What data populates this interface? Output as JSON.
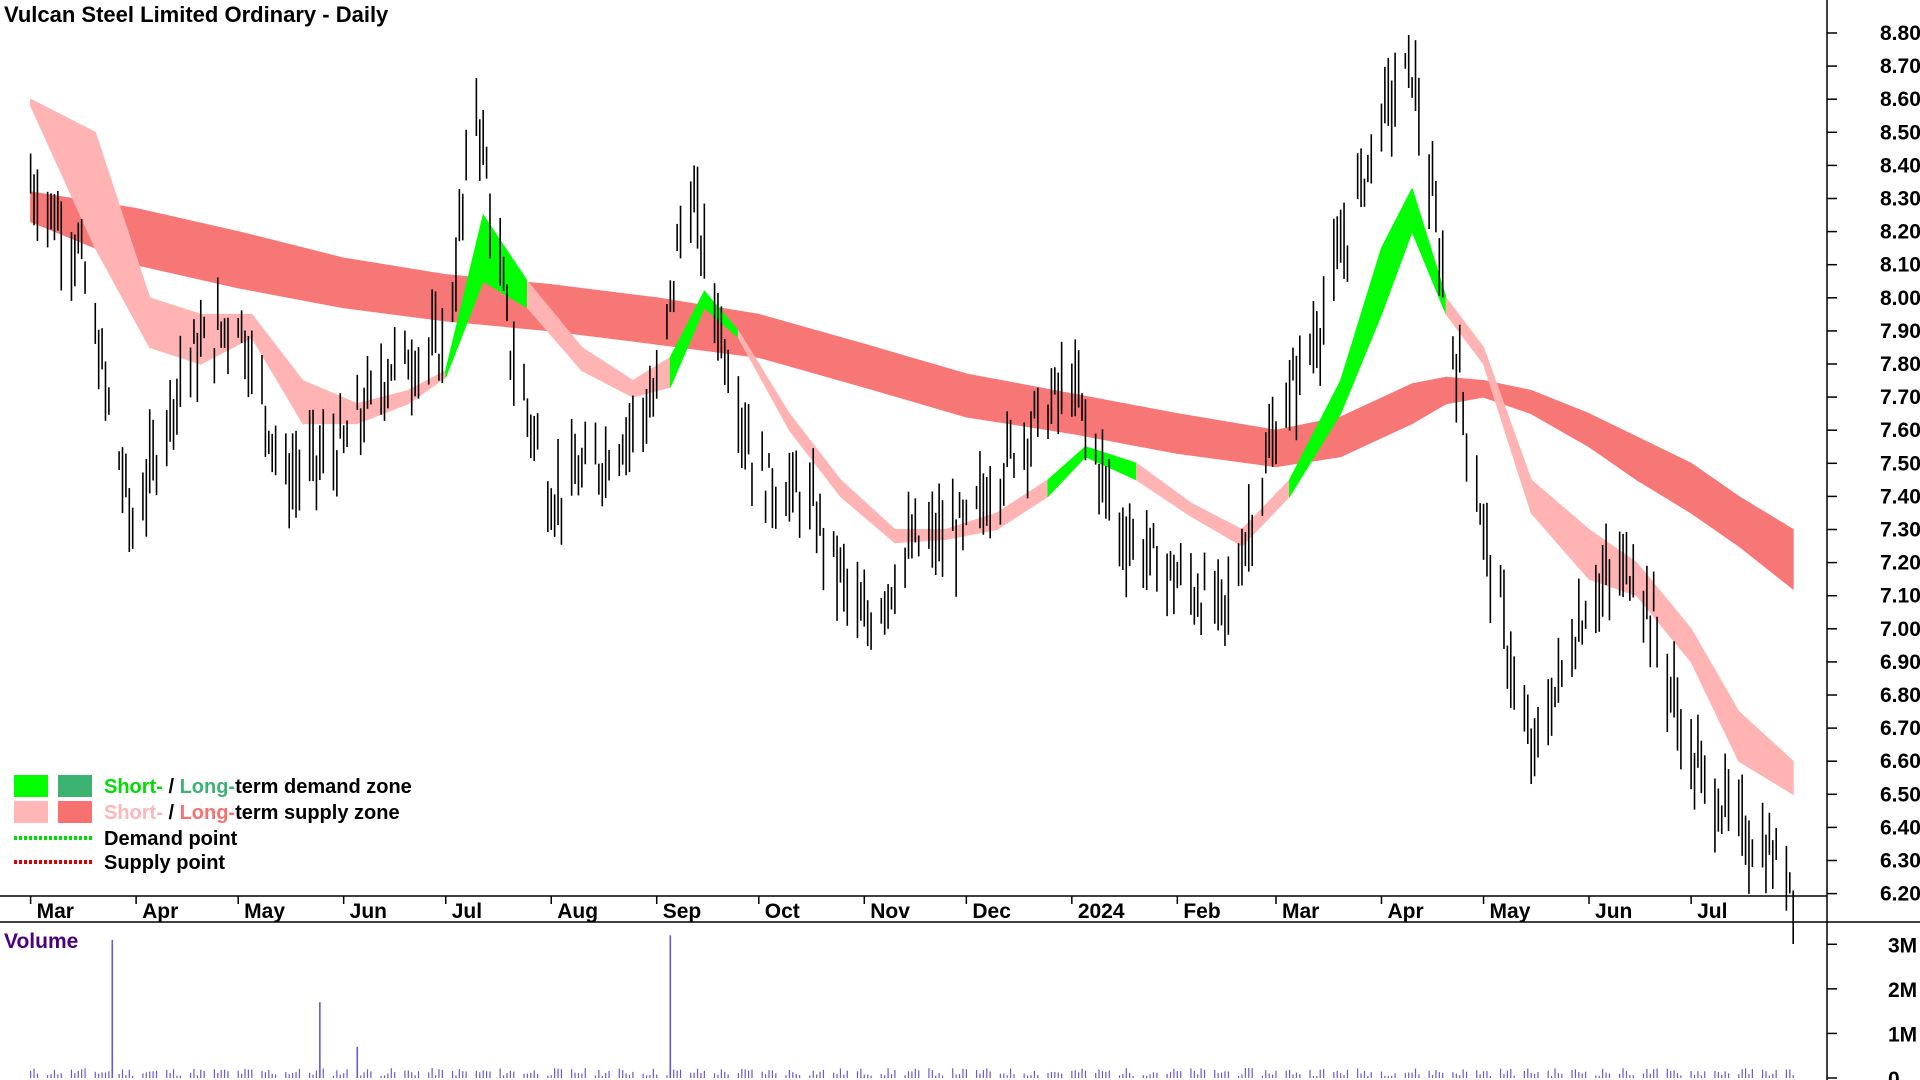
{
  "chart_data": {
    "type": "line",
    "title": "Vulcan Steel Limited Ordinary - Daily",
    "price_axis": {
      "ticks": [
        "8.80",
        "8.70",
        "8.60",
        "8.50",
        "8.40",
        "8.30",
        "8.20",
        "8.10",
        "8.00",
        "7.90",
        "7.80",
        "7.70",
        "7.60",
        "7.50",
        "7.40",
        "7.30",
        "7.20",
        "7.10",
        "7.00",
        "6.90",
        "6.80",
        "6.70",
        "6.60",
        "6.50",
        "6.40",
        "6.30",
        "6.20"
      ],
      "ylim": [
        6.2,
        8.85
      ]
    },
    "x_labels": [
      "Mar",
      "Apr",
      "May",
      "Jun",
      "Jul",
      "Aug",
      "Sep",
      "Oct",
      "Nov",
      "Dec",
      "2024",
      "Feb",
      "Mar",
      "Apr",
      "May",
      "Jun",
      "Jul"
    ],
    "price_series": {
      "name": "Daily price bars (approximate closes)",
      "x": [
        "2023-03-01",
        "2023-03-15",
        "2023-03-31",
        "2023-04-15",
        "2023-05-01",
        "2023-05-15",
        "2023-06-01",
        "2023-06-15",
        "2023-07-01",
        "2023-07-10",
        "2023-07-20",
        "2023-08-01",
        "2023-08-15",
        "2023-09-01",
        "2023-09-10",
        "2023-09-20",
        "2023-10-01",
        "2023-10-15",
        "2023-11-01",
        "2023-11-15",
        "2023-12-01",
        "2023-12-15",
        "2024-01-01",
        "2024-01-15",
        "2024-02-01",
        "2024-02-15",
        "2024-03-01",
        "2024-03-15",
        "2024-04-01",
        "2024-04-10",
        "2024-04-20",
        "2024-05-01",
        "2024-05-15",
        "2024-06-01",
        "2024-06-15",
        "2024-07-01",
        "2024-07-15",
        "2024-07-31"
      ],
      "values": [
        8.35,
        8.15,
        7.3,
        7.8,
        7.95,
        7.45,
        7.55,
        7.8,
        7.85,
        8.6,
        7.85,
        7.4,
        7.5,
        7.7,
        8.35,
        7.9,
        7.45,
        7.4,
        7.0,
        7.25,
        7.3,
        7.55,
        7.75,
        7.3,
        7.15,
        7.05,
        7.6,
        7.95,
        8.55,
        8.7,
        8.0,
        7.3,
        6.6,
        7.1,
        7.2,
        6.6,
        6.4,
        6.25
      ]
    },
    "short_term_zone": {
      "x": [
        "2023-03-01",
        "2023-03-20",
        "2023-04-05",
        "2023-04-20",
        "2023-05-05",
        "2023-05-20",
        "2023-06-05",
        "2023-06-20",
        "2023-07-01",
        "2023-07-12",
        "2023-07-25",
        "2023-08-10",
        "2023-08-25",
        "2023-09-05",
        "2023-09-15",
        "2023-09-25",
        "2023-10-10",
        "2023-10-25",
        "2023-11-10",
        "2023-11-25",
        "2023-12-10",
        "2023-12-25",
        "2024-01-05",
        "2024-01-20",
        "2024-02-05",
        "2024-02-20",
        "2024-03-05",
        "2024-03-20",
        "2024-04-01",
        "2024-04-10",
        "2024-04-20",
        "2024-05-01",
        "2024-05-15",
        "2024-06-01",
        "2024-06-15",
        "2024-07-01",
        "2024-07-15",
        "2024-07-31"
      ],
      "upper": [
        8.6,
        8.5,
        8.0,
        7.95,
        7.95,
        7.75,
        7.68,
        7.72,
        7.78,
        8.25,
        8.05,
        7.85,
        7.75,
        7.82,
        8.02,
        7.9,
        7.65,
        7.45,
        7.3,
        7.3,
        7.35,
        7.45,
        7.55,
        7.5,
        7.38,
        7.3,
        7.45,
        7.75,
        8.15,
        8.33,
        8.0,
        7.85,
        7.45,
        7.3,
        7.2,
        7.0,
        6.75,
        6.6
      ],
      "lower": [
        8.58,
        8.15,
        7.85,
        7.8,
        7.88,
        7.62,
        7.62,
        7.68,
        7.76,
        8.05,
        7.97,
        7.78,
        7.7,
        7.73,
        7.97,
        7.88,
        7.6,
        7.4,
        7.26,
        7.27,
        7.3,
        7.4,
        7.52,
        7.45,
        7.34,
        7.25,
        7.4,
        7.65,
        7.95,
        8.2,
        7.95,
        7.8,
        7.35,
        7.15,
        7.1,
        6.9,
        6.6,
        6.5
      ],
      "state": [
        "supply",
        "supply",
        "supply",
        "supply",
        "supply",
        "supply",
        "supply",
        "supply",
        "demand",
        "demand",
        "supply",
        "supply",
        "supply",
        "demand",
        "demand",
        "supply",
        "supply",
        "supply",
        "supply",
        "supply",
        "supply",
        "demand",
        "demand",
        "supply",
        "supply",
        "supply",
        "demand",
        "demand",
        "demand",
        "demand",
        "supply",
        "supply",
        "supply",
        "supply",
        "supply",
        "supply",
        "supply",
        "supply"
      ]
    },
    "long_term_zone": {
      "x": [
        "2023-03-01",
        "2023-04-01",
        "2023-05-01",
        "2023-06-01",
        "2023-07-01",
        "2023-08-01",
        "2023-09-01",
        "2023-10-01",
        "2023-11-01",
        "2023-12-01",
        "2024-01-01",
        "2024-02-01",
        "2024-03-01",
        "2024-03-20",
        "2024-04-10",
        "2024-04-20",
        "2024-05-01",
        "2024-05-15",
        "2024-06-01",
        "2024-06-15",
        "2024-07-01",
        "2024-07-15",
        "2024-07-31"
      ],
      "upper": [
        8.32,
        8.27,
        8.2,
        8.12,
        8.07,
        8.04,
        8.0,
        7.95,
        7.86,
        7.77,
        7.71,
        7.65,
        7.6,
        7.64,
        7.74,
        7.76,
        7.75,
        7.72,
        7.65,
        7.58,
        7.5,
        7.4,
        7.3
      ],
      "lower": [
        8.23,
        8.1,
        8.03,
        7.97,
        7.93,
        7.9,
        7.86,
        7.82,
        7.73,
        7.64,
        7.59,
        7.53,
        7.49,
        7.52,
        7.62,
        7.68,
        7.7,
        7.65,
        7.55,
        7.45,
        7.35,
        7.25,
        7.12
      ],
      "state": [
        "supply",
        "supply",
        "supply",
        "supply",
        "supply",
        "supply",
        "supply",
        "supply",
        "supply",
        "supply",
        "supply",
        "supply",
        "supply",
        "supply",
        "supply",
        "supply",
        "supply",
        "supply",
        "supply",
        "supply",
        "supply",
        "supply",
        "supply"
      ]
    },
    "volume": {
      "title": "Volume",
      "ticks": [
        "3M",
        "2M",
        "1M",
        "0"
      ],
      "ylim": [
        0,
        3500000
      ],
      "spikes": [
        {
          "x": "2023-03-25",
          "value": 3100000
        },
        {
          "x": "2023-05-25",
          "value": 1700000
        },
        {
          "x": "2023-06-05",
          "value": 700000
        },
        {
          "x": "2023-09-05",
          "value": 3200000
        }
      ],
      "baseline_value": 150000
    },
    "legend": {
      "placement": "bottom-left",
      "rows": [
        {
          "part_a": "Short-",
          "sep": " / ",
          "part_b": "Long-",
          "rest": "term demand zone",
          "color_a": "#00ff00",
          "color_b": "#3cb371"
        },
        {
          "part_a": "Short-",
          "sep": " / ",
          "part_b": "Long-",
          "rest": "term supply zone",
          "color_a": "#ffb6b6",
          "color_b": "#f87171"
        },
        {
          "label": "Demand point",
          "color": "#00dd00"
        },
        {
          "label": "Supply point",
          "color": "#dd0000"
        }
      ]
    },
    "colors": {
      "short_demand": "#00ff00",
      "long_demand": "#3cb371",
      "short_supply": "#ffb3b3",
      "long_supply": "#f77777",
      "crossover": "#ff6a1f",
      "price": "#000000",
      "volume": "#6a5acd"
    }
  }
}
